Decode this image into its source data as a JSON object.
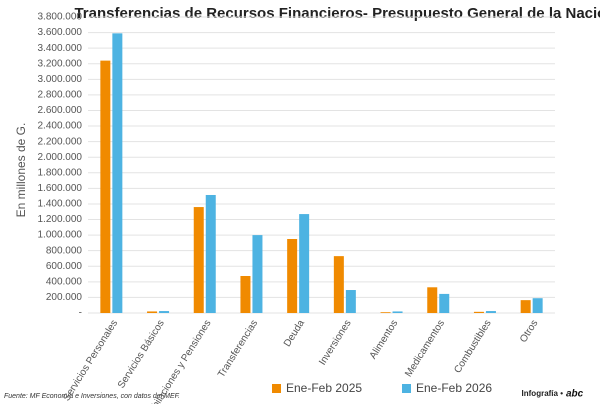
{
  "chart_data": {
    "type": "bar",
    "title": "Transferencias de Recursos Financieros- Presupuesto General de la Nación",
    "y_label": "En millones de G.",
    "categories": [
      "Servicios Personales",
      "Servicios Básicos",
      "Jubilaciones y Pensiones",
      "Transferencias",
      "Deuda",
      "Inversiones",
      "Alimentos",
      "Medicamentos",
      "Combustibles",
      "Otros"
    ],
    "series": [
      {
        "name": "Ene-Feb 2025",
        "color": "#f08a00",
        "values": [
          3240000,
          20000,
          1360000,
          475000,
          950000,
          730000,
          10000,
          330000,
          15000,
          165000
        ]
      },
      {
        "name": "Ene-Feb 2026",
        "color": "#4db3e2",
        "values": [
          3590000,
          25000,
          1515000,
          1000000,
          1270000,
          295000,
          20000,
          245000,
          25000,
          190000
        ]
      }
    ],
    "ylim": [
      0,
      3800000
    ],
    "yticks": [
      {
        "value": 0,
        "label": "-"
      },
      {
        "value": 200000,
        "label": "200.000"
      },
      {
        "value": 400000,
        "label": "400.000"
      },
      {
        "value": 600000,
        "label": "600.000"
      },
      {
        "value": 800000,
        "label": "800.000"
      },
      {
        "value": 1000000,
        "label": "1.000.000"
      },
      {
        "value": 1200000,
        "label": "1.200.000"
      },
      {
        "value": 1400000,
        "label": "1.400.000"
      },
      {
        "value": 1600000,
        "label": "1.600.000"
      },
      {
        "value": 1800000,
        "label": "1.800.000"
      },
      {
        "value": 2000000,
        "label": "2.000.000"
      },
      {
        "value": 2200000,
        "label": "2.200.000"
      },
      {
        "value": 2400000,
        "label": "2.400.000"
      },
      {
        "value": 2600000,
        "label": "2.600.000"
      },
      {
        "value": 2800000,
        "label": "2.800.000"
      },
      {
        "value": 3000000,
        "label": "3.000.000"
      },
      {
        "value": 3200000,
        "label": "3.200.000"
      },
      {
        "value": 3400000,
        "label": "3.400.000"
      },
      {
        "value": 3600000,
        "label": "3.600.000"
      },
      {
        "value": 3800000,
        "label": "3.800.000"
      }
    ],
    "grid": true,
    "legend": "bottom",
    "source": "Fuente: MF Economía e Inversiones, con datos del MEF.",
    "credit": "Infografía •",
    "logo": "abc"
  }
}
